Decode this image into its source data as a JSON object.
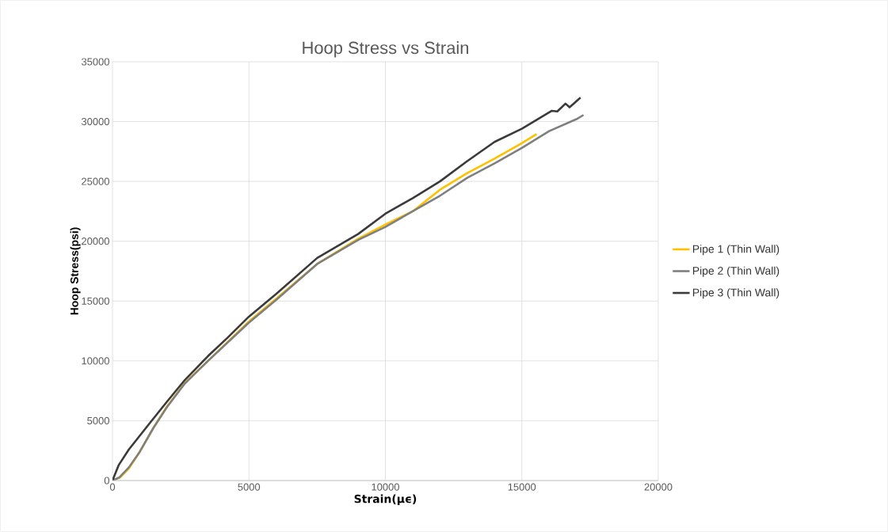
{
  "chart_data": {
    "type": "line",
    "title": "Hoop Stress vs Strain",
    "xlabel": "Strain(μϵ)",
    "ylabel": "Hoop Stress(psi)",
    "xlim": [
      0,
      20000
    ],
    "ylim": [
      0,
      35000
    ],
    "xticks": [
      0,
      5000,
      10000,
      15000,
      20000
    ],
    "yticks": [
      0,
      5000,
      10000,
      15000,
      20000,
      25000,
      30000,
      35000
    ],
    "grid": true,
    "legend": "right",
    "series": [
      {
        "name": "Pipe 1 (Thin Wall)",
        "color": "#ffc000",
        "x": [
          0,
          300,
          600,
          1000,
          1500,
          2000,
          2650,
          3500,
          5000,
          6000,
          7500,
          9000,
          10000,
          11000,
          12000,
          13000,
          14000,
          15000,
          15540
        ],
        "values": [
          0,
          300,
          1000,
          2400,
          4400,
          6200,
          8150,
          10000,
          13300,
          15200,
          18100,
          20200,
          21400,
          22500,
          24300,
          25700,
          26900,
          28200,
          28950
        ]
      },
      {
        "name": "Pipe 2 (Thin Wall)",
        "color": "#7f7f7f",
        "x": [
          0,
          250,
          600,
          1000,
          1500,
          2000,
          2650,
          3500,
          5000,
          6000,
          7500,
          9000,
          10000,
          11000,
          12000,
          13000,
          14000,
          15000,
          16000,
          17000,
          17260
        ],
        "values": [
          0,
          250,
          1100,
          2400,
          4400,
          6150,
          8100,
          10000,
          13200,
          15100,
          18100,
          20100,
          21200,
          22500,
          23800,
          25300,
          26500,
          27800,
          29200,
          30200,
          30550
        ]
      },
      {
        "name": "Pipe 3 (Thin Wall)",
        "color": "#3a3a3a",
        "x": [
          0,
          230,
          600,
          1400,
          2000,
          2650,
          3500,
          4200,
          5000,
          6000,
          7500,
          9000,
          10000,
          11000,
          12000,
          13000,
          14000,
          15000,
          16100,
          16300,
          16600,
          16750,
          17150
        ],
        "values": [
          0,
          1300,
          2600,
          4900,
          6600,
          8400,
          10400,
          11900,
          13700,
          15600,
          18600,
          20600,
          22300,
          23600,
          25000,
          26700,
          28300,
          29400,
          30900,
          30850,
          31500,
          31200,
          32000
        ]
      }
    ]
  }
}
